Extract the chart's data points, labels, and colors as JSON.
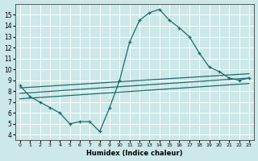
{
  "xlabel": "Humidex (Indice chaleur)",
  "xlim": [
    -0.5,
    23.5
  ],
  "ylim": [
    3.5,
    16.0
  ],
  "yticks": [
    4,
    5,
    6,
    7,
    8,
    9,
    10,
    11,
    12,
    13,
    14,
    15
  ],
  "xticks": [
    0,
    1,
    2,
    3,
    4,
    5,
    6,
    7,
    8,
    9,
    10,
    11,
    12,
    13,
    14,
    15,
    16,
    17,
    18,
    19,
    20,
    21,
    22,
    23
  ],
  "bg_color": "#cce8e8",
  "line_color": "#1e6b6b",
  "grid_color": "#ffffff",
  "curve_x": [
    0,
    1,
    2,
    3,
    4,
    5,
    6,
    7,
    8,
    9,
    10,
    11,
    12,
    13,
    14,
    15,
    16,
    17,
    18,
    19,
    20,
    21,
    22,
    23
  ],
  "curve_y": [
    8.5,
    7.5,
    7.0,
    6.5,
    6.0,
    5.0,
    5.2,
    5.2,
    4.3,
    6.5,
    9.0,
    12.5,
    14.5,
    15.2,
    15.5,
    14.5,
    13.8,
    13.0,
    11.5,
    10.2,
    9.8,
    9.2,
    9.0,
    9.2
  ],
  "line1_x": [
    0,
    23
  ],
  "line1_y": [
    7.3,
    8.7
  ],
  "line2_x": [
    0,
    23
  ],
  "line2_y": [
    7.8,
    9.2
  ],
  "line3_x": [
    0,
    23
  ],
  "line3_y": [
    8.3,
    9.6
  ]
}
